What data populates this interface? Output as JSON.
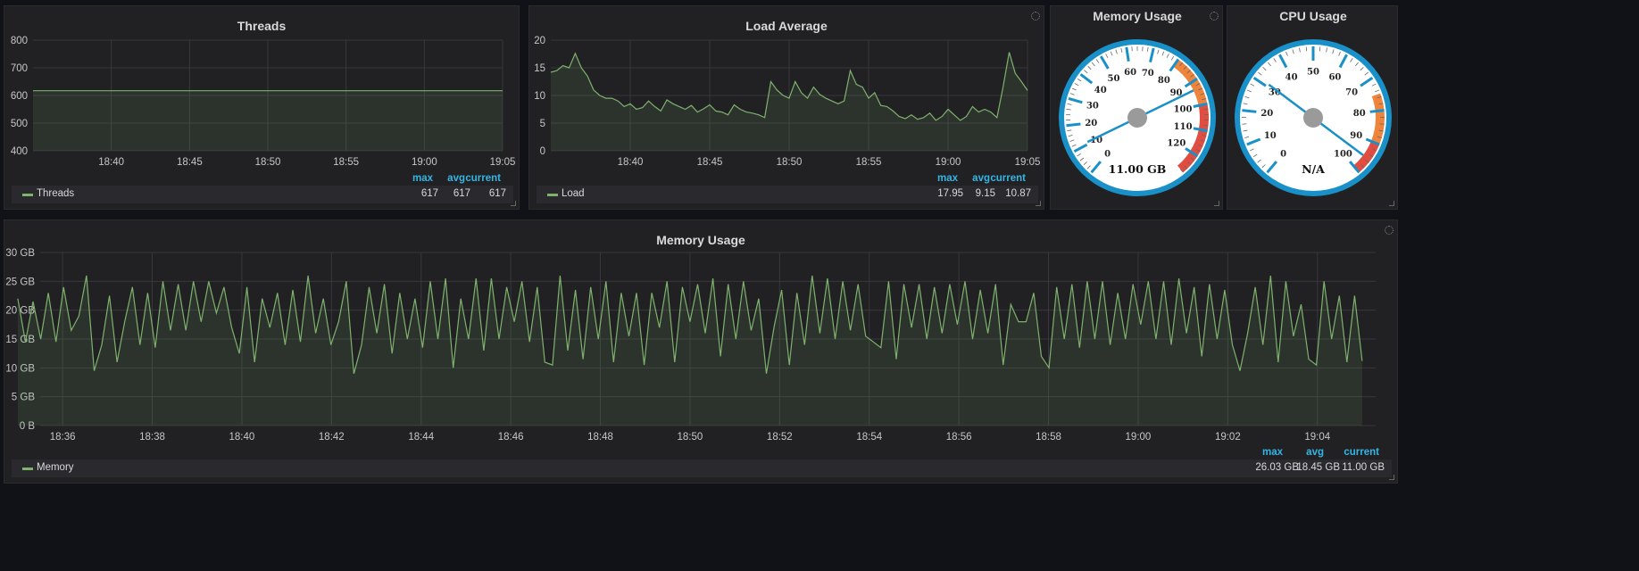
{
  "threads": {
    "title": "Threads",
    "legend": {
      "name": "Threads",
      "headers": [
        "max",
        "avg",
        "current"
      ],
      "values": [
        "617",
        "617",
        "617"
      ]
    }
  },
  "load": {
    "title": "Load Average",
    "legend": {
      "name": "Load",
      "headers": [
        "max",
        "avg",
        "current"
      ],
      "values": [
        "17.95",
        "9.15",
        "10.87"
      ]
    }
  },
  "memory_gauge": {
    "title": "Memory Usage",
    "readout": "11.00 GB"
  },
  "cpu_gauge": {
    "title": "CPU Usage",
    "readout": "N/A"
  },
  "memory": {
    "title": "Memory Usage",
    "legend": {
      "name": "Memory",
      "headers": [
        "max",
        "avg",
        "current"
      ],
      "values": [
        "26.03 GB",
        "18.45 GB",
        "11.00 GB"
      ]
    }
  },
  "colors": {
    "series": "#7eb26d",
    "accent": "#33b5e5",
    "panel": "#212124",
    "bg": "#111217"
  },
  "chart_data": [
    {
      "type": "area",
      "title": "Threads",
      "series": [
        {
          "name": "Threads",
          "x": [
            "18:35",
            "19:06"
          ],
          "values": [
            617,
            617
          ]
        }
      ],
      "x_ticks": [
        "18:40",
        "18:45",
        "18:50",
        "18:55",
        "19:00",
        "19:05"
      ],
      "y_ticks": [
        "400",
        "500",
        "600",
        "700",
        "800"
      ],
      "ylim": [
        400,
        800
      ],
      "grid": true,
      "legend": "bottom"
    },
    {
      "type": "area",
      "title": "Load Average",
      "series": [
        {
          "name": "Load",
          "x_start": "18:35",
          "x_end": "19:05",
          "values": [
            14.2,
            14.5,
            15.4,
            15.0,
            17.6,
            15.0,
            13.5,
            11.0,
            10.0,
            9.5,
            9.5,
            9.0,
            8.0,
            8.5,
            7.5,
            7.8,
            9.0,
            8.0,
            7.2,
            9.2,
            8.5,
            8.0,
            7.5,
            8.2,
            7.0,
            7.6,
            8.3,
            7.2,
            7.0,
            6.5,
            8.3,
            7.5,
            7.0,
            6.8,
            6.5,
            6.0,
            12.5,
            11.0,
            10.0,
            9.5,
            12.5,
            10.5,
            9.5,
            11.5,
            10.2,
            9.5,
            9.0,
            8.5,
            9.0,
            14.5,
            12.0,
            11.5,
            9.5,
            10.5,
            8.2,
            8.0,
            7.2,
            6.2,
            5.8,
            6.5,
            5.7,
            6.0,
            6.8,
            5.5,
            6.2,
            7.5,
            6.5,
            5.5,
            6.2,
            8.0,
            7.0,
            7.5,
            7.0,
            6.0,
            11.5,
            17.8,
            14.0,
            12.5,
            10.9
          ]
        }
      ],
      "x_ticks": [
        "18:40",
        "18:45",
        "18:50",
        "18:55",
        "19:00",
        "19:05"
      ],
      "y_ticks": [
        "0",
        "5",
        "10",
        "15",
        "20"
      ],
      "ylim": [
        0,
        20
      ],
      "grid": true,
      "legend": "bottom"
    },
    {
      "type": "gauge",
      "title": "Memory Usage",
      "value": 11.0,
      "range": [
        0,
        128
      ],
      "ticks": [
        "0",
        "10",
        "20",
        "30",
        "40",
        "50",
        "60",
        "70",
        "80",
        "90",
        "100",
        "110",
        "120"
      ],
      "bands": [
        {
          "from": 80,
          "to": 100,
          "color": "#ef843c"
        },
        {
          "from": 100,
          "to": 128,
          "color": "#e24d42"
        }
      ],
      "readout": "11.00 GB"
    },
    {
      "type": "gauge",
      "title": "CPU Usage",
      "value": 31,
      "range": [
        0,
        100
      ],
      "ticks": [
        "0",
        "10",
        "20",
        "30",
        "40",
        "50",
        "60",
        "70",
        "80",
        "90",
        "100"
      ],
      "bands": [
        {
          "from": 75,
          "to": 90,
          "color": "#ef843c"
        },
        {
          "from": 90,
          "to": 100,
          "color": "#e24d42"
        }
      ],
      "readout": "N/A"
    },
    {
      "type": "area",
      "title": "Memory Usage",
      "series": [
        {
          "name": "Memory",
          "x_start": "18:35",
          "x_end": "19:05",
          "values": [
            22,
            14.5,
            21.5,
            15,
            23,
            14.5,
            24,
            16.5,
            19,
            26,
            9.5,
            14,
            22.5,
            11,
            18,
            24,
            14,
            23,
            13.5,
            25,
            16.5,
            24.5,
            16.5,
            25,
            18,
            25,
            19.5,
            24,
            17,
            12.5,
            24,
            11,
            22,
            17,
            23,
            14,
            23.5,
            14.5,
            26,
            16,
            22,
            14,
            18,
            25,
            9,
            14,
            24,
            16,
            24.5,
            12.5,
            23,
            15,
            22,
            13.5,
            25,
            15,
            25.5,
            10,
            22,
            15,
            25.5,
            13,
            25.5,
            15,
            24,
            18,
            25,
            14.5,
            24,
            11,
            10.5,
            26,
            13,
            23.5,
            11.5,
            24,
            15,
            25,
            11,
            23,
            15.5,
            23,
            10.5,
            23,
            17,
            25,
            11,
            24,
            18,
            24.5,
            16,
            25.5,
            12,
            24.5,
            15,
            25,
            16.5,
            22,
            9,
            17,
            23.5,
            10.5,
            23,
            14,
            26,
            16,
            25.5,
            15,
            25,
            16.5,
            24.5,
            15.5,
            14.5,
            13.5,
            25,
            11.5,
            24.5,
            17,
            24.5,
            15,
            24,
            16,
            24.5,
            17.5,
            25,
            15,
            23.5,
            16,
            24.5,
            10.5,
            21,
            18,
            18,
            23,
            12,
            10,
            24,
            15,
            24.5,
            13.5,
            25,
            15,
            25,
            14,
            23,
            15,
            24.5,
            17.5,
            25,
            15,
            25,
            14,
            25.5,
            16,
            24,
            12,
            24.5,
            15,
            23.5,
            14,
            9.5,
            16,
            24,
            14,
            26,
            11,
            25,
            15.5,
            21,
            11.5,
            10.5,
            25,
            15,
            22.5,
            11,
            22.5,
            11.2
          ]
        }
      ],
      "x_ticks": [
        "18:36",
        "18:38",
        "18:40",
        "18:42",
        "18:44",
        "18:46",
        "18:48",
        "18:50",
        "18:52",
        "18:54",
        "18:56",
        "18:58",
        "19:00",
        "19:02",
        "19:04"
      ],
      "y_ticks": [
        "0 B",
        "5 GB",
        "10 GB",
        "15 GB",
        "20 GB",
        "25 GB",
        "30 GB"
      ],
      "ylim": [
        0,
        30
      ],
      "grid": true,
      "legend": "bottom"
    }
  ]
}
